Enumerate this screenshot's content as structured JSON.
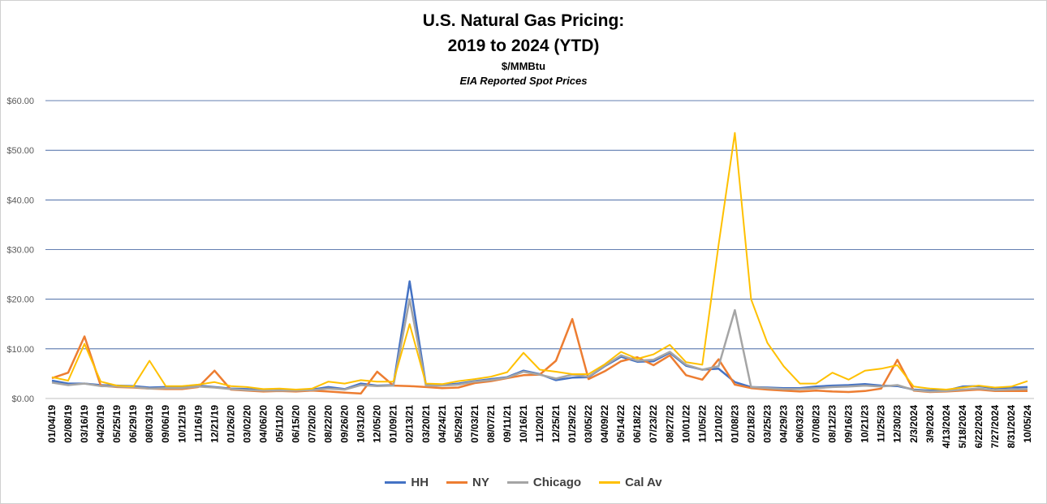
{
  "chart_data": {
    "type": "line",
    "title": "U.S. Natural Gas Pricing:",
    "title2": "2019 to 2024 (YTD)",
    "subtitle": "$/MMBtu",
    "subtitle2": "EIA Reported Spot Prices",
    "ylim": [
      0,
      60
    ],
    "yticks": [
      "$0.00",
      "$10.00",
      "$20.00",
      "$30.00",
      "$40.00",
      "$50.00",
      "$60.00"
    ],
    "grid": true,
    "legend_position": "bottom",
    "xticks": [
      "01/04/19",
      "02/08/19",
      "03/16/19",
      "04/20/19",
      "05/25/19",
      "06/29/19",
      "08/03/19",
      "09/06/19",
      "10/12/19",
      "11/16/19",
      "12/21/19",
      "01/26/20",
      "03/02/20",
      "04/06/20",
      "05/11/20",
      "06/15/20",
      "07/20/20",
      "08/22/20",
      "09/26/20",
      "10/31/20",
      "12/05/20",
      "01/09/21",
      "02/13/21",
      "03/20/21",
      "04/24/21",
      "05/29/21",
      "07/03/21",
      "08/07/21",
      "09/11/21",
      "10/16/21",
      "11/20/21",
      "12/25/21",
      "01/29/22",
      "03/05/22",
      "04/09/22",
      "05/14/22",
      "06/18/22",
      "07/23/22",
      "08/27/22",
      "10/01/22",
      "11/05/22",
      "12/10/22",
      "01/08/23",
      "02/18/23",
      "03/25/23",
      "04/29/23",
      "06/03/23",
      "07/08/23",
      "08/12/23",
      "09/16/23",
      "10/21/23",
      "11/25/23",
      "12/30/23",
      "2/3/2024",
      "3/9/2024",
      "4/13/2024",
      "5/18/2024",
      "6/22/2024",
      "7/27/2024",
      "8/31/2024",
      "10/05/24"
    ],
    "series": [
      {
        "name": "HH",
        "color": "#4472C4",
        "values": [
          3.6,
          3.0,
          3.0,
          2.7,
          2.6,
          2.5,
          2.2,
          2.3,
          2.4,
          2.6,
          2.3,
          2.0,
          1.9,
          1.7,
          1.8,
          1.7,
          1.8,
          2.3,
          1.9,
          3.0,
          2.6,
          2.7,
          23.6,
          2.7,
          2.7,
          3.0,
          3.5,
          3.9,
          4.3,
          5.6,
          4.9,
          3.7,
          4.2,
          4.3,
          6.5,
          8.4,
          7.4,
          7.5,
          9.2,
          6.6,
          5.8,
          6.0,
          3.3,
          2.3,
          2.2,
          2.1,
          2.1,
          2.4,
          2.6,
          2.7,
          2.9,
          2.6,
          2.5,
          1.8,
          1.6,
          1.6,
          2.4,
          2.5,
          2.1,
          2.2,
          2.3
        ]
      },
      {
        "name": "NY",
        "color": "#ED7D31",
        "values": [
          4.1,
          5.2,
          12.5,
          2.6,
          2.3,
          2.2,
          2.0,
          1.9,
          1.9,
          2.3,
          5.6,
          1.8,
          1.6,
          1.4,
          1.5,
          1.4,
          1.6,
          1.4,
          1.2,
          1.0,
          5.4,
          2.6,
          2.5,
          2.3,
          2.1,
          2.2,
          3.1,
          3.5,
          4.1,
          4.7,
          4.8,
          7.6,
          16.0,
          3.9,
          5.5,
          7.5,
          8.3,
          6.7,
          8.7,
          4.7,
          3.8,
          7.9,
          2.8,
          2.1,
          1.8,
          1.6,
          1.4,
          1.6,
          1.4,
          1.3,
          1.5,
          2.0,
          7.8,
          1.6,
          1.3,
          1.4,
          1.6,
          1.8,
          1.5,
          1.5,
          1.5
        ]
      },
      {
        "name": "Chicago",
        "color": "#A5A5A5",
        "values": [
          3.2,
          2.7,
          3.0,
          2.5,
          2.4,
          2.3,
          2.0,
          2.1,
          2.1,
          2.4,
          2.2,
          1.9,
          1.7,
          1.6,
          1.6,
          1.6,
          1.7,
          2.0,
          1.8,
          2.7,
          2.5,
          2.6,
          20.0,
          2.6,
          2.6,
          2.8,
          3.4,
          3.7,
          4.2,
          5.4,
          4.8,
          4.0,
          4.8,
          4.4,
          6.6,
          8.7,
          7.6,
          7.8,
          9.4,
          6.8,
          5.8,
          6.5,
          17.8,
          2.3,
          2.1,
          1.9,
          1.9,
          2.1,
          2.3,
          2.4,
          2.6,
          2.4,
          2.7,
          1.7,
          1.4,
          1.5,
          1.8,
          2.0,
          1.7,
          1.8,
          1.9
        ]
      },
      {
        "name": "Cal Av",
        "color": "#FFC000",
        "values": [
          4.3,
          3.6,
          11.0,
          3.4,
          2.6,
          2.4,
          7.6,
          2.5,
          2.5,
          2.8,
          3.3,
          2.5,
          2.3,
          1.9,
          2.0,
          1.8,
          2.0,
          3.4,
          3.0,
          3.7,
          3.4,
          3.4,
          15.0,
          3.0,
          2.9,
          3.5,
          3.9,
          4.4,
          5.3,
          9.2,
          5.8,
          5.4,
          4.9,
          4.9,
          6.9,
          9.4,
          8.0,
          8.9,
          10.8,
          7.3,
          6.8,
          31.0,
          53.5,
          20.0,
          11.2,
          6.5,
          3.0,
          3.0,
          5.2,
          3.8,
          5.6,
          6.0,
          6.7,
          2.4,
          2.0,
          1.8,
          2.2,
          2.6,
          2.2,
          2.4,
          3.5
        ]
      }
    ]
  }
}
